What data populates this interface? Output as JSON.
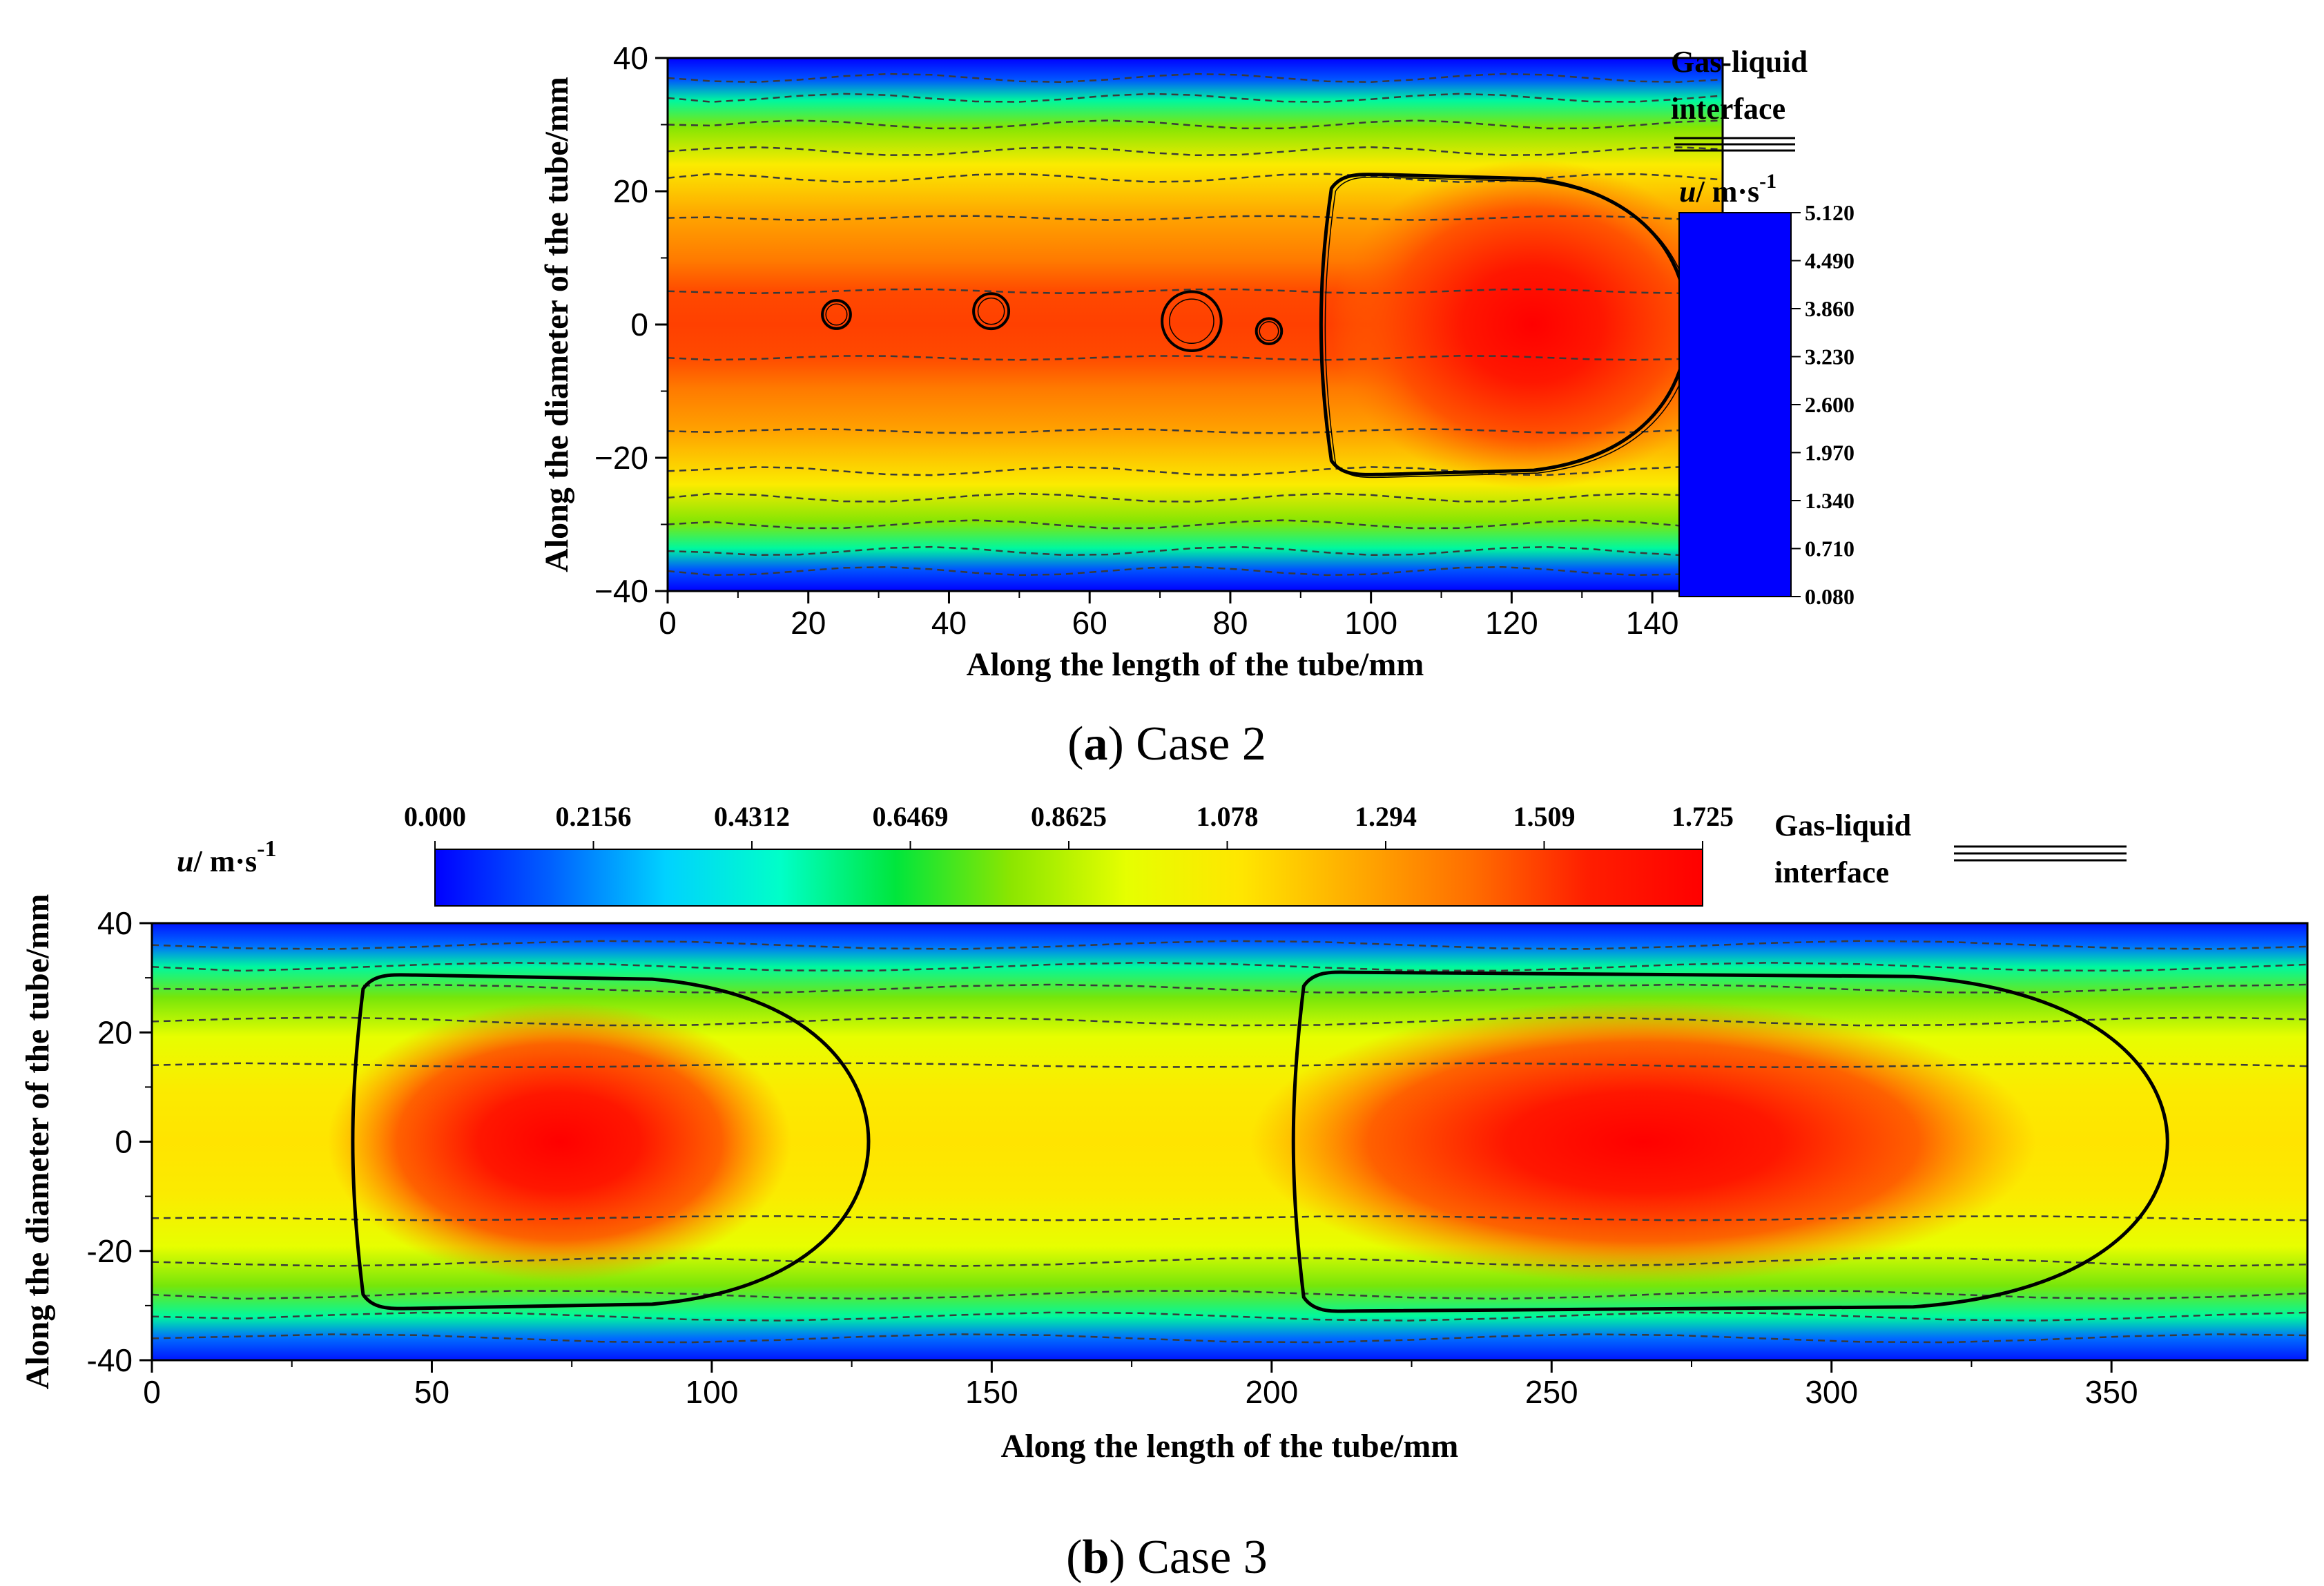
{
  "colors": {
    "colormap": [
      "#0000ff",
      "#0060ff",
      "#00d2ff",
      "#00ffc8",
      "#00e63c",
      "#8ce600",
      "#e6ff00",
      "#ffe600",
      "#ffaa00",
      "#ff6e00",
      "#ff1e00",
      "#ff0000"
    ],
    "contour_line": "#3a3a3a",
    "interface_line": "#000000"
  },
  "chart_data": [
    {
      "id": "a",
      "type": "heatmap",
      "caption_letter": "a",
      "caption_text": ") Case 2",
      "caption_open": "(",
      "xlabel": "Along the length of the tube/mm",
      "ylabel": "Along the diameter of the tube/mm",
      "xlim": [
        0,
        150
      ],
      "ylim": [
        -40,
        40
      ],
      "xticks": [
        0,
        20,
        40,
        60,
        80,
        100,
        120,
        140
      ],
      "xtick_labels": [
        "0",
        "20",
        "40",
        "60",
        "80",
        "100",
        "120",
        "140"
      ],
      "yticks": [
        40,
        20,
        0,
        -20,
        -40
      ],
      "ytick_labels": [
        "40",
        "20",
        "0",
        "−20",
        "−40"
      ],
      "colorbar": {
        "title_italic": "u",
        "title_rest": "/ m·s",
        "title_sup": "-1",
        "range": [
          0.08,
          5.12
        ],
        "tick_labels": [
          "5.120",
          "4.490",
          "3.860",
          "3.230",
          "2.600",
          "1.970",
          "1.340",
          "0.710",
          "0.080"
        ]
      },
      "legend": {
        "label_line1": "Gas-liquid",
        "label_line2": "interface"
      },
      "taylor_bubble": {
        "tail_x": 93,
        "nose_x": 145,
        "radius": 22.5
      },
      "small_bubbles": [
        {
          "x": 24,
          "y": 1.5,
          "r": 2
        },
        {
          "x": 46,
          "y": 2,
          "r": 2.5
        },
        {
          "x": 74.5,
          "y": 0.5,
          "r": 4.2
        },
        {
          "x": 85.5,
          "y": -1,
          "r": 1.8
        }
      ]
    },
    {
      "id": "b",
      "type": "heatmap",
      "caption_letter": "b",
      "caption_text": ") Case 3",
      "caption_open": "(",
      "xlabel": "Along the length of the tube/mm",
      "ylabel": "Along the diameter of the tube/mm",
      "xlim": [
        0,
        385
      ],
      "ylim": [
        -40,
        40
      ],
      "xticks": [
        0,
        50,
        100,
        150,
        200,
        250,
        300,
        350
      ],
      "xtick_labels": [
        "0",
        "50",
        "100",
        "150",
        "200",
        "250",
        "300",
        "350"
      ],
      "yticks": [
        40,
        20,
        0,
        -20,
        -40
      ],
      "ytick_labels": [
        "40",
        "20",
        "0",
        "-20",
        "-40"
      ],
      "colorbar": {
        "title_italic": "u",
        "title_rest": "/ m·s",
        "title_sup": "-1",
        "range": [
          0.0,
          1.725
        ],
        "tick_labels": [
          "0.000",
          "0.2156",
          "0.4312",
          "0.6469",
          "0.8625",
          "1.078",
          "1.294",
          "1.509",
          "1.725"
        ]
      },
      "legend": {
        "label_line1": "Gas-liquid",
        "label_line2": "interface"
      },
      "taylor_bubbles": [
        {
          "tail_x": 36,
          "nose_x": 128,
          "radius": 30.5
        },
        {
          "tail_x": 204,
          "nose_x": 360,
          "radius": 31
        }
      ]
    }
  ]
}
